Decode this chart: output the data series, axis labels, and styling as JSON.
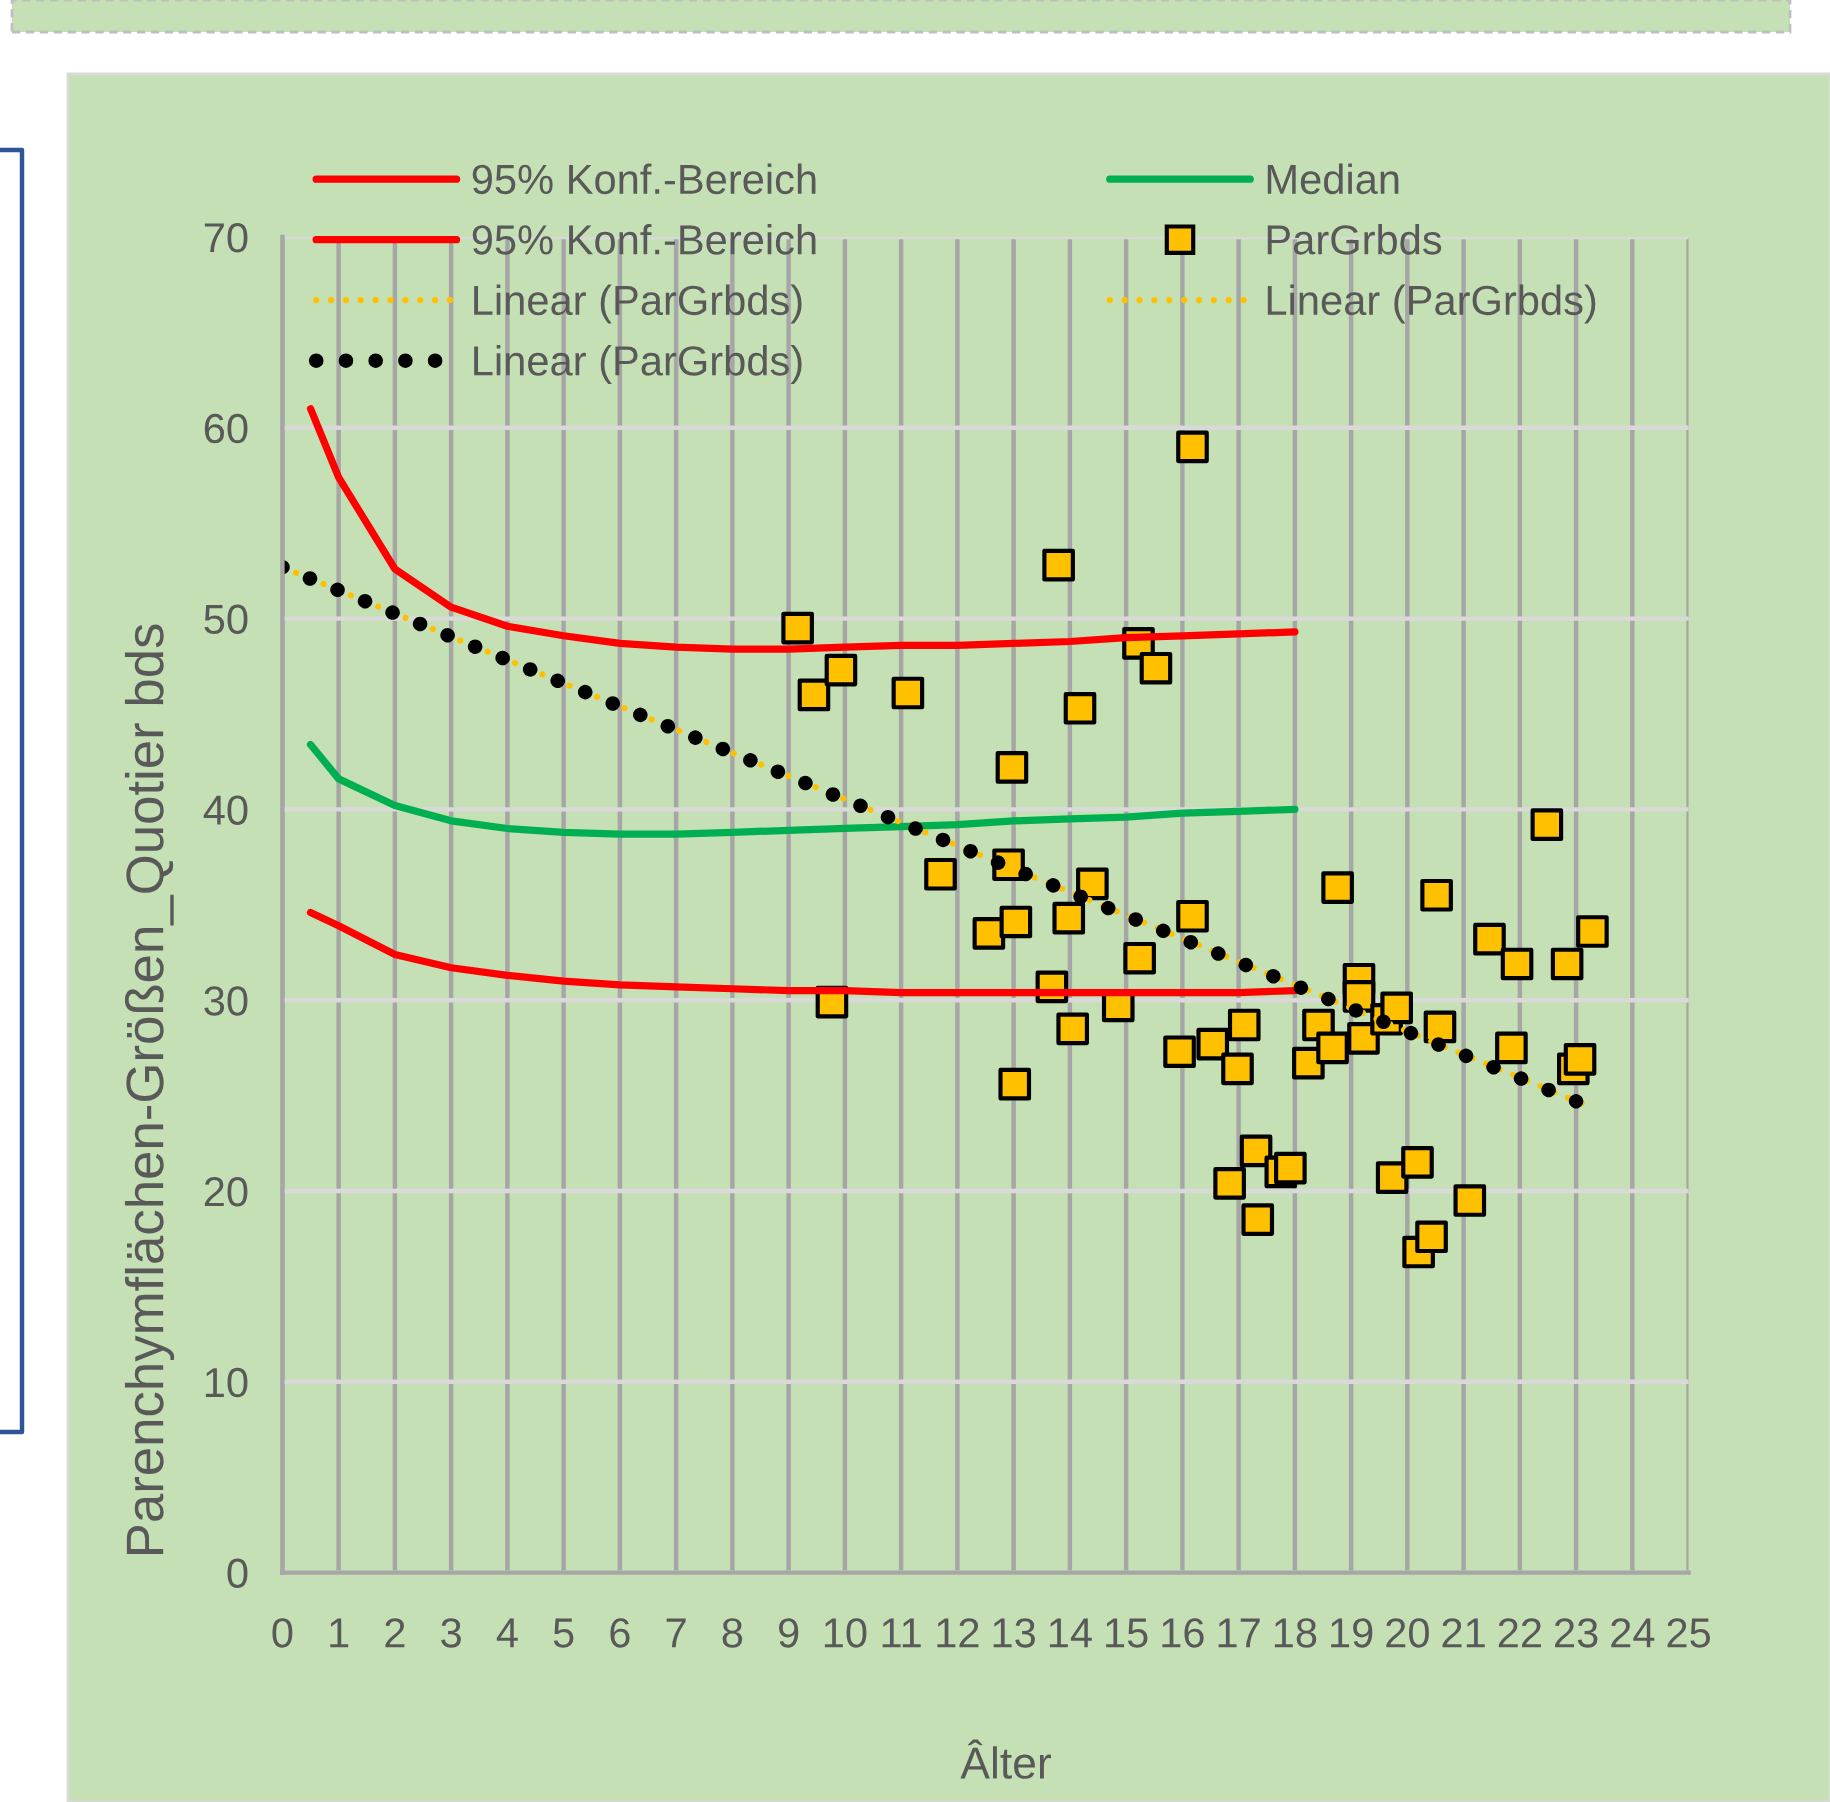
{
  "chart_data": {
    "type": "scatter",
    "xlabel": "Âlter",
    "ylabel": "Parenchymflächen-Größen_Quotier bds",
    "xlim": [
      0,
      25
    ],
    "ylim": [
      0,
      70
    ],
    "xticks": [
      0,
      1,
      2,
      3,
      4,
      5,
      6,
      7,
      8,
      9,
      10,
      11,
      12,
      13,
      14,
      15,
      16,
      17,
      18,
      19,
      20,
      21,
      22,
      23,
      24,
      25
    ],
    "yticks": [
      0,
      10,
      20,
      30,
      40,
      50,
      60,
      70
    ],
    "grid": true,
    "legend": "top",
    "series": [
      {
        "name": "95% Konf.-Bereich",
        "type": "line",
        "color": "#ff0000",
        "x": [
          0.5,
          1,
          2,
          3,
          4,
          5,
          6,
          7,
          8,
          9,
          10,
          11,
          12,
          13,
          14,
          15,
          16,
          17,
          18
        ],
        "values": [
          61.0,
          57.4,
          52.6,
          50.6,
          49.6,
          49.1,
          48.7,
          48.5,
          48.4,
          48.4,
          48.5,
          48.6,
          48.6,
          48.7,
          48.8,
          49.0,
          49.1,
          49.2,
          49.3
        ]
      },
      {
        "name": "Median",
        "type": "line",
        "color": "#00b050",
        "x": [
          0.5,
          1,
          2,
          3,
          4,
          5,
          6,
          7,
          8,
          9,
          10,
          11,
          12,
          13,
          14,
          15,
          16,
          17,
          18
        ],
        "values": [
          43.4,
          41.6,
          40.2,
          39.4,
          39.0,
          38.8,
          38.7,
          38.7,
          38.8,
          38.9,
          39.0,
          39.1,
          39.2,
          39.4,
          39.5,
          39.6,
          39.8,
          39.9,
          40.0
        ]
      },
      {
        "name": "95% Konf.-Bereich",
        "type": "line",
        "color": "#ff0000",
        "x": [
          0.5,
          1,
          2,
          3,
          4,
          5,
          6,
          7,
          8,
          9,
          10,
          11,
          12,
          13,
          14,
          15,
          16,
          17,
          18
        ],
        "values": [
          34.6,
          33.9,
          32.4,
          31.7,
          31.3,
          31.0,
          30.8,
          30.7,
          30.6,
          30.5,
          30.5,
          30.4,
          30.4,
          30.4,
          30.4,
          30.4,
          30.4,
          30.4,
          30.5
        ]
      },
      {
        "name": "ParGrbds",
        "color": "#ffc000",
        "marker": "square",
        "x": [
          9.16,
          9.45,
          9.77,
          9.93,
          11.12,
          11.7,
          12.56,
          12.91,
          12.97,
          13.04,
          13.02,
          13.68,
          13.8,
          13.98,
          14.05,
          14.18,
          14.4,
          14.86,
          15.22,
          15.24,
          15.53,
          15.95,
          16.18,
          16.18,
          16.54,
          16.84,
          16.98,
          17.1,
          17.31,
          17.34,
          17.75,
          17.92,
          18.24,
          18.42,
          18.67,
          18.76,
          19.14,
          19.14,
          19.22,
          19.63,
          19.73,
          19.81,
          20.18,
          20.2,
          20.43,
          20.52,
          20.58,
          21.11,
          21.46,
          21.85,
          21.95,
          22.48,
          22.84,
          22.95,
          23.07,
          23.29
        ],
        "values": [
          49.5,
          46.0,
          29.9,
          47.3,
          46.1,
          36.6,
          33.5,
          37.1,
          42.2,
          34.1,
          25.6,
          30.7,
          52.8,
          34.3,
          28.5,
          45.3,
          36.1,
          29.7,
          48.7,
          32.2,
          47.4,
          27.3,
          59.0,
          34.4,
          27.7,
          20.4,
          26.4,
          28.7,
          22.1,
          18.5,
          21.0,
          21.2,
          26.7,
          28.7,
          27.5,
          35.9,
          31.1,
          30.2,
          28.0,
          29.0,
          20.7,
          29.6,
          21.5,
          16.8,
          17.6,
          35.5,
          28.6,
          19.5,
          33.2,
          27.5,
          31.9,
          39.2,
          31.9,
          26.4,
          26.9,
          33.6
        ]
      },
      {
        "name": "Linear (ParGrbds)",
        "type": "line",
        "color": "#ffc000",
        "line_style": "dotted",
        "x": [
          0,
          23.1
        ],
        "values": [
          52.7,
          24.6
        ]
      },
      {
        "name": "Linear (ParGrbds)",
        "type": "line",
        "color": "#ffc000",
        "line_style": "dotted",
        "values": [
          null,
          null
        ]
      },
      {
        "name": "Linear (ParGrbds)",
        "type": "line",
        "color": "#000000",
        "line_style": "dotted",
        "x": [
          0,
          23.0
        ],
        "values": [
          52.7,
          24.7
        ]
      }
    ]
  }
}
